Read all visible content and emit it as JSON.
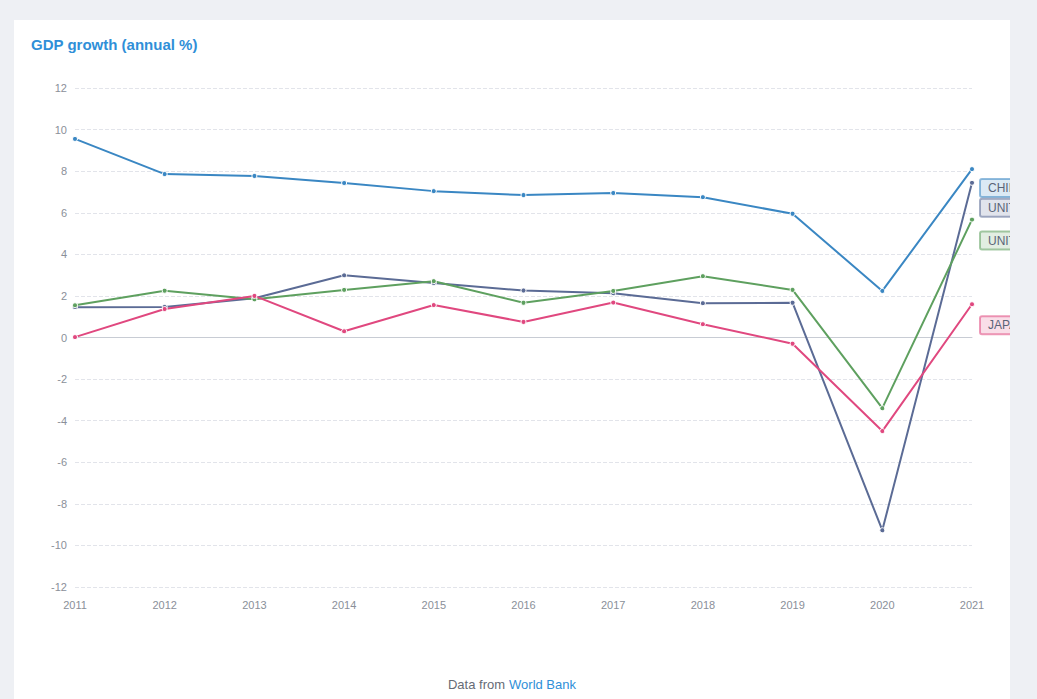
{
  "chart_data": {
    "type": "line",
    "title": "GDP growth (annual %)",
    "source": {
      "text": "Data from",
      "link": "World Bank"
    },
    "categories": [
      "2011",
      "2012",
      "2013",
      "2014",
      "2015",
      "2016",
      "2017",
      "2018",
      "2019",
      "2020",
      "2021"
    ],
    "series": [
      {
        "name": "CHINA",
        "color": "#3a87c3",
        "values": [
          9.55,
          7.86,
          7.77,
          7.43,
          7.04,
          6.85,
          6.95,
          6.75,
          5.95,
          2.24,
          8.1
        ]
      },
      {
        "name": "UNITED KINGDOM",
        "color": "#5b6b95",
        "values": [
          1.46,
          1.47,
          1.89,
          2.99,
          2.62,
          2.26,
          2.13,
          1.65,
          1.67,
          -9.27,
          7.44
        ]
      },
      {
        "name": "UNITED STATES",
        "color": "#5ea05f",
        "values": [
          1.55,
          2.25,
          1.84,
          2.29,
          2.71,
          1.67,
          2.24,
          2.95,
          2.29,
          -3.4,
          5.67
        ]
      },
      {
        "name": "JAPAN",
        "color": "#e0487f",
        "values": [
          0.02,
          1.37,
          2.0,
          0.3,
          1.56,
          0.75,
          1.68,
          0.64,
          -0.3,
          -4.5,
          1.6
        ]
      }
    ],
    "ylim": [
      -12,
      12
    ],
    "yticks": [
      -12,
      -10,
      -8,
      -6,
      -4,
      -2,
      0,
      2,
      4,
      6,
      8,
      10,
      12
    ],
    "grid": true,
    "marker": "circle"
  }
}
